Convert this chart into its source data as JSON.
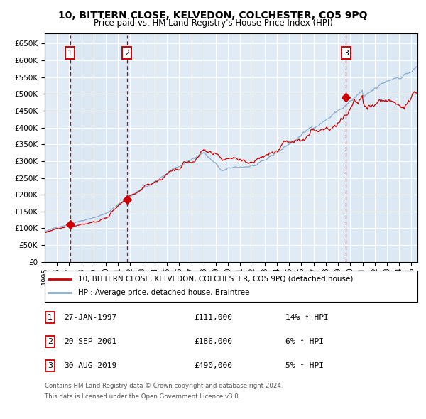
{
  "title": "10, BITTERN CLOSE, KELVEDON, COLCHESTER, CO5 9PQ",
  "subtitle": "Price paid vs. HM Land Registry's House Price Index (HPI)",
  "legend_line1": "10, BITTERN CLOSE, KELVEDON, COLCHESTER, CO5 9PQ (detached house)",
  "legend_line2": "HPI: Average price, detached house, Braintree",
  "transactions": [
    {
      "label": "1",
      "date": "27-JAN-1997",
      "price": 111000,
      "pct": "14%",
      "x_year": 1997.07
    },
    {
      "label": "2",
      "date": "20-SEP-2001",
      "price": 186000,
      "pct": "6%",
      "x_year": 2001.72
    },
    {
      "label": "3",
      "date": "30-AUG-2019",
      "price": 490000,
      "pct": "5%",
      "x_year": 2019.66
    }
  ],
  "background_color": "#ffffff",
  "chart_bg_color": "#dce9f5",
  "grid_color": "#ffffff",
  "red_line_color": "#cc0000",
  "blue_line_color": "#88aacc",
  "marker_color": "#cc0000",
  "vline_color": "#cc0000",
  "label_box_color": "#cc0000",
  "ylim": [
    0,
    680000
  ],
  "xlim_start": 1995.0,
  "xlim_end": 2025.5,
  "footer_line1": "Contains HM Land Registry data © Crown copyright and database right 2024.",
  "footer_line2": "This data is licensed under the Open Government Licence v3.0."
}
